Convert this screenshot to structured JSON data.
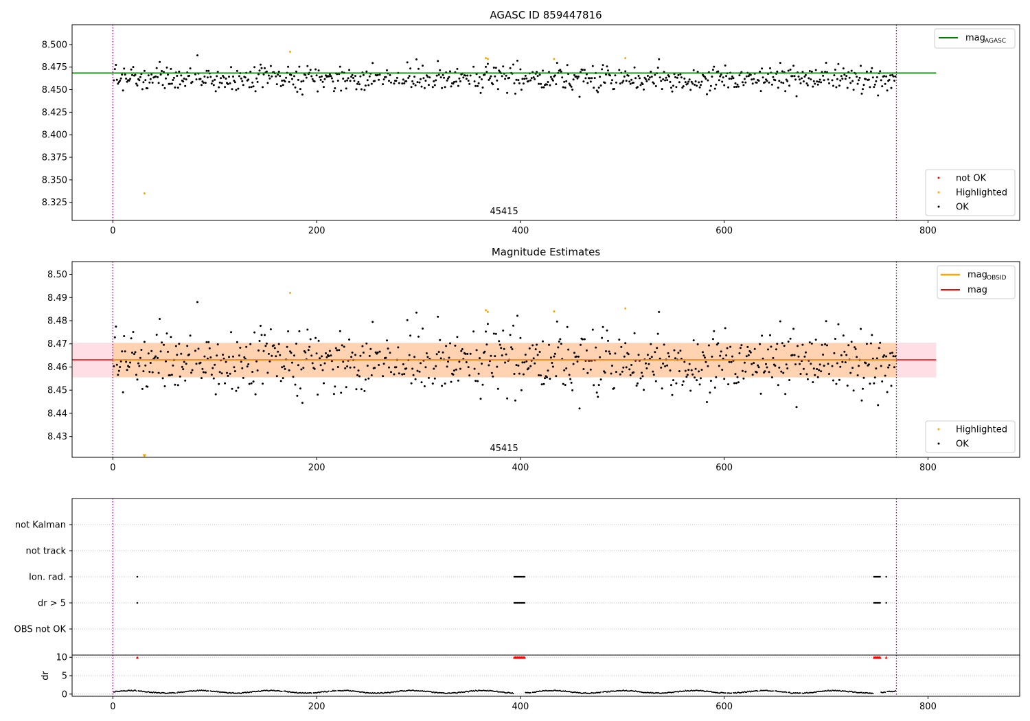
{
  "chart_data": [
    {
      "type": "scatter",
      "title": "AGASC ID 859447816",
      "xlim": [
        -40,
        890
      ],
      "ylim": [
        8.305,
        8.522
      ],
      "xticks": [
        0,
        200,
        400,
        600,
        800
      ],
      "yticks": [
        8.325,
        8.35,
        8.375,
        8.4,
        8.425,
        8.45,
        8.475,
        8.5
      ],
      "ytick_labels": [
        "8.325",
        "8.350",
        "8.375",
        "8.400",
        "8.425",
        "8.450",
        "8.475",
        "8.500"
      ],
      "obsid_lines": [
        0,
        769
      ],
      "obsid_label": "45415",
      "obsid_label_x": 384,
      "hline": {
        "y": 8.4685,
        "x0": -40,
        "x1": 808,
        "color": "#008000",
        "legend_label": "mag",
        "legend_sub": "AGASC"
      },
      "legend_lines_position": "upper right",
      "legend_points_position": "lower right",
      "series": [
        {
          "name": "not OK",
          "color": "#ff0000",
          "x": [],
          "y": []
        },
        {
          "name": "Highlighted",
          "color": "#ffa500",
          "x": [
            31,
            174,
            366,
            368,
            433,
            503
          ],
          "y": [
            8.335,
            8.492,
            8.485,
            8.484,
            8.484,
            8.485
          ]
        },
        {
          "name": "OK",
          "color": "#000000",
          "random": {
            "n": 760,
            "mean": 8.4625,
            "sd": 0.0068,
            "seed": 7
          }
        }
      ]
    },
    {
      "type": "scatter",
      "title": "Magnitude Estimates",
      "xlim": [
        -40,
        890
      ],
      "ylim": [
        8.421,
        8.5055
      ],
      "xticks": [
        0,
        200,
        400,
        600,
        800
      ],
      "yticks": [
        8.43,
        8.44,
        8.45,
        8.46,
        8.47,
        8.48,
        8.49,
        8.5
      ],
      "ytick_labels": [
        "8.43",
        "8.44",
        "8.45",
        "8.46",
        "8.47",
        "8.48",
        "8.49",
        "8.50"
      ],
      "obsid_lines": [
        0,
        769
      ],
      "obsid_label": "45415",
      "obsid_label_x": 384,
      "band_outer": {
        "y0": 8.4555,
        "y1": 8.4705,
        "x0": -40,
        "x1": 808,
        "color": "#ffc0cb"
      },
      "band_inner": {
        "y0": 8.4556,
        "y1": 8.4704,
        "x0": 0,
        "x1": 769,
        "color": "#ffa500"
      },
      "hline_mag": {
        "y": 8.4631,
        "x0": -40,
        "x1": 808,
        "color": "#ff0000",
        "legend_label": "mag"
      },
      "hline_obs": {
        "color": "#ffa500",
        "legend_label": "mag",
        "legend_sub": "OBSID"
      },
      "triangle_marker": {
        "x": 31,
        "y": 8.4215,
        "color": "#ffa500"
      },
      "legend_lines_position": "upper right",
      "legend_points_position": "lower right",
      "series": [
        {
          "name": "Highlighted",
          "color": "#ffa500",
          "x": [
            174,
            366,
            368,
            433,
            503
          ],
          "y": [
            8.492,
            8.4845,
            8.4838,
            8.484,
            8.4853
          ]
        },
        {
          "name": "OK",
          "color": "#000000",
          "random": {
            "n": 760,
            "mean": 8.4625,
            "sd": 0.0068,
            "seed": 7
          }
        }
      ]
    },
    {
      "type": "scatter",
      "title": "",
      "xlim": [
        -40,
        890
      ],
      "categories": [
        "OBS not OK",
        "dr > 5",
        "Ion. rad.",
        "not track",
        "not Kalman"
      ],
      "obsid_lines": [
        0,
        769
      ],
      "flag_points": {
        "dr > 5": [
          24,
          394,
          395,
          396,
          397,
          398,
          399,
          400,
          401,
          402,
          403,
          404,
          747,
          748,
          749,
          750,
          751,
          752,
          753,
          759
        ],
        "Ion. rad.": [
          24,
          394,
          395,
          396,
          397,
          398,
          399,
          400,
          401,
          402,
          403,
          404,
          747,
          748,
          749,
          750,
          751,
          752,
          753,
          759
        ]
      }
    },
    {
      "type": "scatter",
      "title": "",
      "xlim": [
        -40,
        890
      ],
      "ylim": [
        -0.6,
        10.6
      ],
      "xticks": [
        0,
        200,
        400,
        600,
        800
      ],
      "yticks": [
        0,
        5,
        10
      ],
      "ylabel": "dr",
      "obsid_lines": [
        0,
        769
      ],
      "clipped_marker_color": "#ff0000",
      "clipped_x": [
        24,
        394,
        395,
        396,
        397,
        398,
        399,
        400,
        401,
        402,
        403,
        404,
        747,
        748,
        749,
        750,
        751,
        752,
        753,
        759
      ]
    }
  ]
}
